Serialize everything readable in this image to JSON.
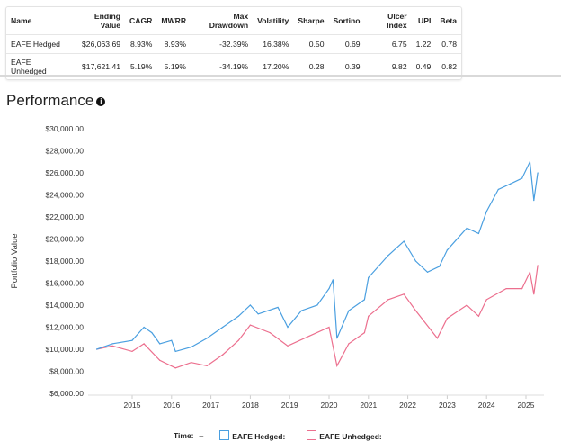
{
  "table": {
    "headers": [
      "Name",
      "Ending Value",
      "CAGR",
      "MWRR",
      "Max Drawdown",
      "Volatility",
      "Sharpe",
      "Sortino",
      "Ulcer Index",
      "UPI",
      "Beta"
    ],
    "rows": [
      [
        "EAFE Hedged",
        "$26,063.69",
        "8.93%",
        "8.93%",
        "-32.39%",
        "16.38%",
        "0.50",
        "0.69",
        "6.75",
        "1.22",
        "0.78"
      ],
      [
        "EAFE Unhedged",
        "$17,621.41",
        "5.19%",
        "5.19%",
        "-34.19%",
        "17.20%",
        "0.28",
        "0.39",
        "9.82",
        "0.49",
        "0.82"
      ]
    ]
  },
  "section_title": "Performance",
  "info_icon": "info-circle-icon",
  "chart_data": {
    "type": "line",
    "ylabel": "Portfolio Value",
    "ylim": [
      6000,
      30000
    ],
    "xlim": [
      2014.1,
      2025.35
    ],
    "yticks": [
      "$6,000.00",
      "$8,000.00",
      "$10,000.00",
      "$12,000.00",
      "$14,000.00",
      "$16,000.00",
      "$18,000.00",
      "$20,000.00",
      "$22,000.00",
      "$24,000.00",
      "$26,000.00",
      "$28,000.00",
      "$30,000.00"
    ],
    "xticks": [
      "2015",
      "2016",
      "2017",
      "2018",
      "2019",
      "2020",
      "2021",
      "2022",
      "2023",
      "2024",
      "2025"
    ],
    "grid": false,
    "legend": {
      "position": "bottom",
      "time_label": "Time:",
      "time_value": "–"
    },
    "series": [
      {
        "name": "EAFE Hedged:",
        "color": "#4a9fe0",
        "x": [
          2014.1,
          2014.5,
          2015.0,
          2015.3,
          2015.5,
          2015.7,
          2016.0,
          2016.1,
          2016.5,
          2016.9,
          2017.3,
          2017.7,
          2018.0,
          2018.2,
          2018.7,
          2018.95,
          2019.3,
          2019.7,
          2020.0,
          2020.1,
          2020.2,
          2020.5,
          2020.9,
          2021.0,
          2021.5,
          2021.9,
          2022.2,
          2022.5,
          2022.8,
          2023.0,
          2023.5,
          2023.8,
          2024.0,
          2024.3,
          2024.6,
          2024.9,
          2025.1,
          2025.2,
          2025.3
        ],
        "y": [
          10000,
          10500,
          10800,
          12000,
          11500,
          10500,
          10800,
          9800,
          10200,
          11000,
          12000,
          13000,
          14000,
          13200,
          13800,
          12000,
          13500,
          14000,
          15500,
          16300,
          11000,
          13500,
          14500,
          16500,
          18500,
          19800,
          18000,
          17000,
          17500,
          19000,
          21000,
          20500,
          22500,
          24500,
          25000,
          25500,
          27000,
          23500,
          26000
        ]
      },
      {
        "name": "EAFE Unhedged:",
        "color": "#ec6f8e",
        "x": [
          2014.1,
          2014.5,
          2015.0,
          2015.3,
          2015.7,
          2016.1,
          2016.5,
          2016.9,
          2017.3,
          2017.7,
          2018.0,
          2018.5,
          2018.95,
          2019.5,
          2020.0,
          2020.2,
          2020.5,
          2020.9,
          2021.0,
          2021.5,
          2021.9,
          2022.2,
          2022.75,
          2023.0,
          2023.5,
          2023.8,
          2024.0,
          2024.5,
          2024.9,
          2025.1,
          2025.2,
          2025.3
        ],
        "y": [
          10000,
          10300,
          9800,
          10500,
          9000,
          8300,
          8800,
          8500,
          9500,
          10800,
          12200,
          11500,
          10300,
          11200,
          12000,
          8500,
          10500,
          11500,
          13000,
          14500,
          15000,
          13500,
          11000,
          12800,
          14000,
          13000,
          14500,
          15500,
          15500,
          17000,
          15000,
          17600
        ]
      }
    ]
  }
}
